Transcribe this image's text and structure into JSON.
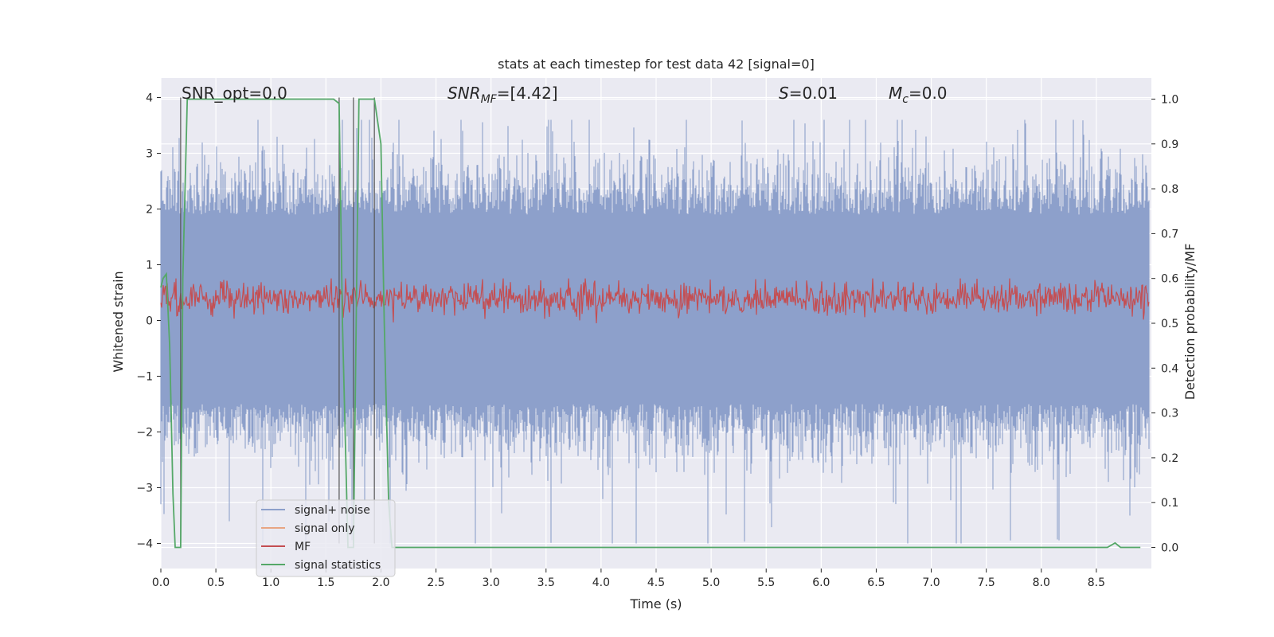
{
  "chart_data": {
    "type": "line",
    "title": "stats at each timestep for test data 42 [signal=0]",
    "xlabel": "Time (s)",
    "ylabel": "Whitened strain",
    "y2label": "Detection probability/MF",
    "xlim": [
      0.0,
      9.0
    ],
    "ylim": [
      -4.45,
      4.35
    ],
    "y2lim": [
      -0.047,
      1.047
    ],
    "xticks": [
      0.0,
      0.5,
      1.0,
      1.5,
      2.0,
      2.5,
      3.0,
      3.5,
      4.0,
      4.5,
      5.0,
      5.5,
      6.0,
      6.5,
      7.0,
      7.5,
      8.0,
      8.5
    ],
    "xtick_labels": [
      "0.0",
      "0.5",
      "1.0",
      "1.5",
      "2.0",
      "2.5",
      "3.0",
      "3.5",
      "4.0",
      "4.5",
      "5.0",
      "5.5",
      "6.0",
      "6.5",
      "7.0",
      "7.5",
      "8.0",
      "8.5"
    ],
    "yticks": [
      4,
      3,
      2,
      1,
      0,
      -1,
      -2,
      -3,
      -4
    ],
    "ytick_labels": [
      "4",
      "3",
      "2",
      "1",
      "0",
      "−1",
      "−2",
      "−3",
      "−4"
    ],
    "y2ticks": [
      1.0,
      0.9,
      0.8,
      0.7,
      0.6,
      0.5,
      0.4,
      0.3,
      0.2,
      0.1,
      0.0
    ],
    "y2tick_labels": [
      "1.0",
      "0.9",
      "0.8",
      "0.7",
      "0.6",
      "0.5",
      "0.4",
      "0.3",
      "0.2",
      "0.1",
      "0.0"
    ],
    "grid": true,
    "legend_placement": "lower-left",
    "annotations": {
      "snr_opt": "SNR_opt=0.0",
      "snr_mf_base": "SNR",
      "snr_mf_sub": "MF",
      "snr_mf_rest": "=[4.42]",
      "s_var": "S",
      "s_rest": "=0.01",
      "mc_var": "M",
      "mc_sub": "c",
      "mc_rest": "=0.0"
    },
    "vertical_markers_x": [
      0.18,
      1.62,
      1.75,
      1.94
    ],
    "series": [
      {
        "name": "signal+ noise",
        "color": "#8da0cb",
        "axis": "left",
        "style": "noise",
        "envelope_upper_approx": [
          1.9,
          3.6
        ],
        "envelope_lower_approx": [
          -1.5,
          -4.0
        ]
      },
      {
        "name": "signal only",
        "color": "#e8a583",
        "axis": "left",
        "values": []
      },
      {
        "name": "MF",
        "color": "#c44e52",
        "axis": "right",
        "style": "noise",
        "range_approx": [
          0.5,
          0.63
        ]
      },
      {
        "name": "signal statistics",
        "color": "#55a868",
        "axis": "right",
        "x": [
          0.0,
          0.02,
          0.05,
          0.08,
          0.11,
          0.13,
          0.18,
          0.2,
          0.24,
          0.3,
          0.5,
          1.0,
          1.4,
          1.57,
          1.62,
          1.65,
          1.7,
          1.72,
          1.75,
          1.78,
          1.8,
          1.85,
          1.9,
          1.94,
          2.0,
          2.03,
          2.07,
          2.1,
          3.0,
          5.0,
          8.0,
          8.6,
          8.67,
          8.72,
          8.9
        ],
        "y": [
          0.58,
          0.6,
          0.61,
          0.45,
          0.12,
          0.0,
          0.0,
          0.6,
          1.0,
          1.0,
          1.0,
          1.0,
          1.0,
          1.0,
          0.99,
          0.5,
          0.0,
          0.0,
          0.0,
          0.6,
          1.0,
          1.0,
          1.0,
          1.0,
          0.9,
          0.5,
          0.1,
          0.0,
          0.0,
          0.0,
          0.0,
          0.0,
          0.01,
          0.0,
          0.0
        ]
      }
    ]
  }
}
